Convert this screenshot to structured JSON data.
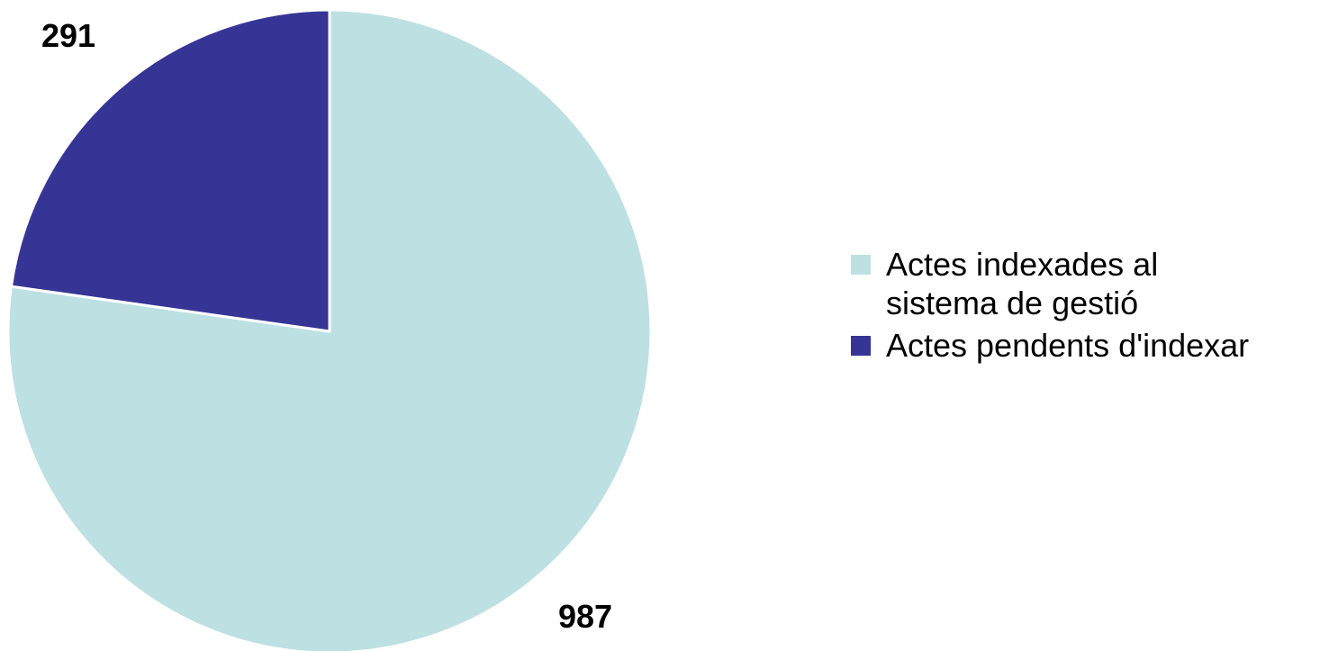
{
  "chart_data": {
    "type": "pie",
    "title": "",
    "start_angle_deg": 0,
    "direction": "clockwise",
    "legend_position": "right",
    "slices": [
      {
        "label": "Actes indexades al\nsistema de gestió",
        "value": 987,
        "color": "#bde0e3"
      },
      {
        "label": "Actes pendents d'indexar",
        "value": 291,
        "color": "#363596"
      }
    ]
  }
}
